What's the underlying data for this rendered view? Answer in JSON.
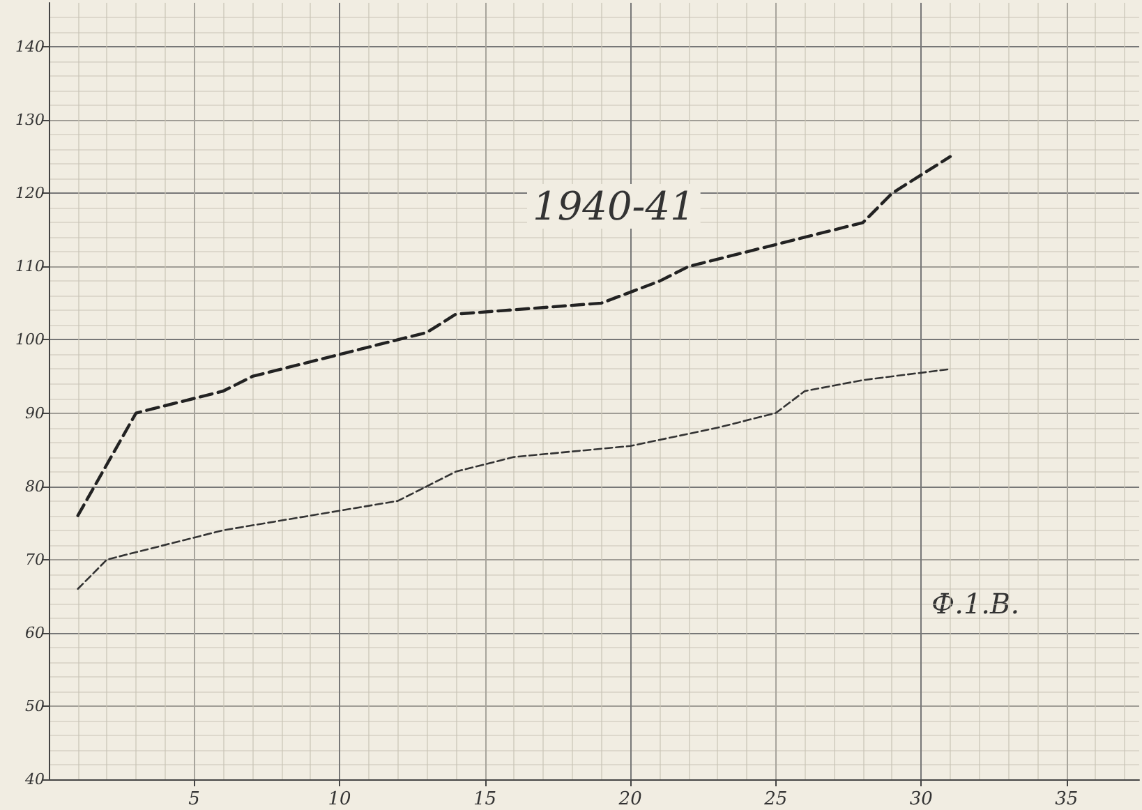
{
  "chart_data": {
    "type": "line",
    "title": "1940-41",
    "annotations": [
      "Ф.1.В."
    ],
    "series": [
      {
        "color": "#222222",
        "line_style": "dashed",
        "x": [
          1,
          3,
          6,
          7,
          10,
          12,
          13,
          14,
          19,
          21,
          22,
          28,
          29,
          31
        ],
        "values": [
          76,
          90,
          93,
          95,
          98,
          100,
          101,
          103.5,
          105,
          108,
          110,
          116,
          120,
          125
        ]
      },
      {
        "color": "#333333",
        "line_style": "dashed",
        "x": [
          1,
          2,
          6,
          12,
          13,
          14,
          16,
          20,
          23,
          25,
          26,
          28,
          31
        ],
        "values": [
          66,
          70,
          74,
          78,
          80,
          82,
          84,
          85.5,
          88,
          90,
          93,
          94.5,
          96
        ]
      }
    ],
    "xlim": [
      0,
      37.5
    ],
    "xticks": [
      5,
      10,
      15,
      20,
      25,
      30,
      35
    ],
    "ylim": [
      40,
      146
    ],
    "yticks": [
      40,
      50,
      60,
      70,
      80,
      90,
      100,
      110,
      120,
      130,
      140
    ],
    "grid": true,
    "marker": "none"
  }
}
